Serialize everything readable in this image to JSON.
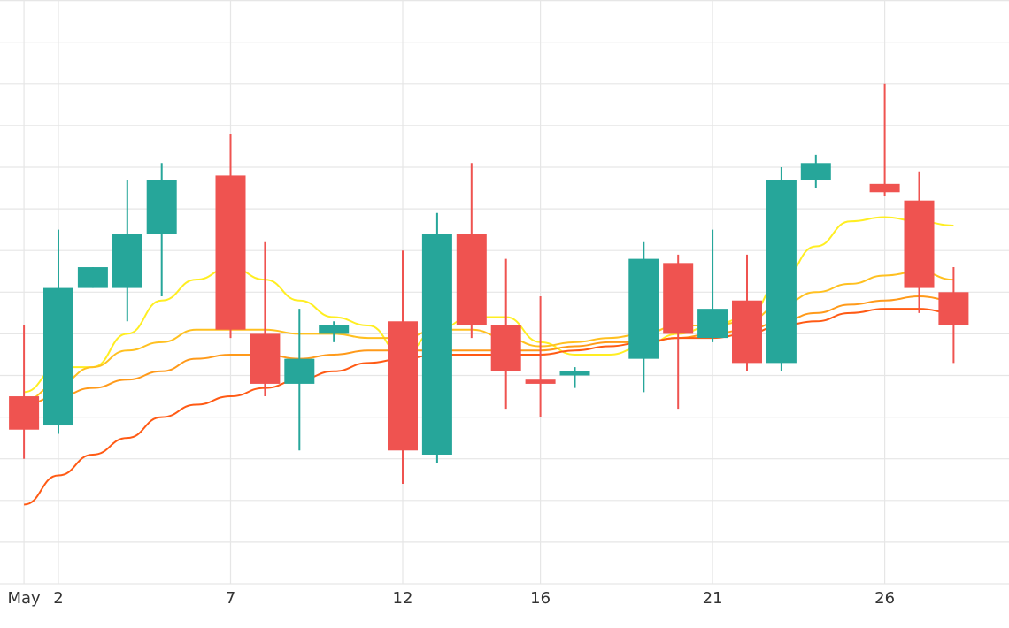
{
  "chart_data": {
    "type": "candlestick",
    "title": "",
    "xlabel": "",
    "ylabel": "",
    "x_tick_labels": [
      {
        "label": "May",
        "date": "2024-05-01"
      },
      {
        "label": "2",
        "date": "2024-05-02"
      },
      {
        "label": "7",
        "date": "2024-05-07"
      },
      {
        "label": "12",
        "date": "2024-05-12"
      },
      {
        "label": "16",
        "date": "2024-05-16"
      },
      {
        "label": "21",
        "date": "2024-05-21"
      },
      {
        "label": "26",
        "date": "2024-05-26"
      }
    ],
    "xlim": [
      "2024-04-30T15:00",
      "2024-05-29T16:00"
    ],
    "ylim": [
      0,
      14
    ],
    "grid": true,
    "y_axis_labels_visible": false,
    "colors": {
      "increasing": "#26a69a",
      "decreasing": "#ef5350",
      "grid": "#e6e6e6",
      "ma_lines": [
        "#ffee22",
        "#ffc020",
        "#ff9a1a",
        "#ff5a14"
      ]
    },
    "candles": [
      {
        "date": "2024-05-01",
        "open": 4.5,
        "high": 6.2,
        "low": 3.0,
        "close": 3.7
      },
      {
        "date": "2024-05-02",
        "open": 3.8,
        "high": 8.5,
        "low": 3.6,
        "close": 7.1
      },
      {
        "date": "2024-05-03",
        "open": 7.1,
        "high": 7.6,
        "low": 7.1,
        "close": 7.6
      },
      {
        "date": "2024-05-04",
        "open": 7.1,
        "high": 9.7,
        "low": 6.3,
        "close": 8.4
      },
      {
        "date": "2024-05-05",
        "open": 8.4,
        "high": 10.1,
        "low": 6.9,
        "close": 9.7
      },
      {
        "date": "2024-05-07",
        "open": 9.8,
        "high": 10.8,
        "low": 5.9,
        "close": 6.1
      },
      {
        "date": "2024-05-08",
        "open": 6.0,
        "high": 8.2,
        "low": 4.5,
        "close": 4.8
      },
      {
        "date": "2024-05-09",
        "open": 4.8,
        "high": 6.6,
        "low": 3.2,
        "close": 5.4
      },
      {
        "date": "2024-05-10",
        "open": 6.0,
        "high": 6.3,
        "low": 5.8,
        "close": 6.2
      },
      {
        "date": "2024-05-12",
        "open": 6.3,
        "high": 8.0,
        "low": 2.4,
        "close": 3.2
      },
      {
        "date": "2024-05-13",
        "open": 3.1,
        "high": 8.9,
        "low": 2.9,
        "close": 8.4
      },
      {
        "date": "2024-05-14",
        "open": 8.4,
        "high": 10.1,
        "low": 5.9,
        "close": 6.2
      },
      {
        "date": "2024-05-15",
        "open": 6.2,
        "high": 7.8,
        "low": 4.2,
        "close": 5.1
      },
      {
        "date": "2024-05-16",
        "open": 4.9,
        "high": 6.9,
        "low": 4.0,
        "close": 4.8
      },
      {
        "date": "2024-05-17",
        "open": 5.0,
        "high": 5.2,
        "low": 4.7,
        "close": 5.1
      },
      {
        "date": "2024-05-19",
        "open": 5.4,
        "high": 8.2,
        "low": 4.6,
        "close": 7.8
      },
      {
        "date": "2024-05-20",
        "open": 7.7,
        "high": 7.9,
        "low": 4.2,
        "close": 6.0
      },
      {
        "date": "2024-05-21",
        "open": 5.9,
        "high": 8.5,
        "low": 5.8,
        "close": 6.6
      },
      {
        "date": "2024-05-22",
        "open": 6.8,
        "high": 7.9,
        "low": 5.1,
        "close": 5.3
      },
      {
        "date": "2024-05-23",
        "open": 5.3,
        "high": 10.0,
        "low": 5.1,
        "close": 9.7
      },
      {
        "date": "2024-05-24",
        "open": 9.7,
        "high": 10.3,
        "low": 9.5,
        "close": 10.1
      },
      {
        "date": "2024-05-26",
        "open": 9.6,
        "high": 12.0,
        "low": 9.3,
        "close": 9.4
      },
      {
        "date": "2024-05-27",
        "open": 9.2,
        "high": 9.9,
        "low": 6.5,
        "close": 7.1
      },
      {
        "date": "2024-05-28",
        "open": 7.0,
        "high": 7.6,
        "low": 5.3,
        "close": 6.2
      }
    ],
    "ma_series": [
      {
        "color": "#ffee22",
        "points": [
          [
            "2024-05-01",
            4.6
          ],
          [
            "2024-05-02",
            5.2
          ],
          [
            "2024-05-03",
            5.2
          ],
          [
            "2024-05-04",
            6.0
          ],
          [
            "2024-05-05",
            6.8
          ],
          [
            "2024-05-06",
            7.3
          ],
          [
            "2024-05-07",
            7.6
          ],
          [
            "2024-05-08",
            7.3
          ],
          [
            "2024-05-09",
            6.8
          ],
          [
            "2024-05-10",
            6.4
          ],
          [
            "2024-05-11",
            6.2
          ],
          [
            "2024-05-12",
            5.5
          ],
          [
            "2024-05-13",
            6.1
          ],
          [
            "2024-05-14",
            6.4
          ],
          [
            "2024-05-15",
            6.4
          ],
          [
            "2024-05-16",
            5.8
          ],
          [
            "2024-05-17",
            5.5
          ],
          [
            "2024-05-18",
            5.5
          ],
          [
            "2024-05-19",
            5.7
          ],
          [
            "2024-05-20",
            6.0
          ],
          [
            "2024-05-21",
            6.2
          ],
          [
            "2024-05-22",
            6.4
          ],
          [
            "2024-05-23",
            7.3
          ],
          [
            "2024-05-24",
            8.1
          ],
          [
            "2024-05-25",
            8.7
          ],
          [
            "2024-05-26",
            8.8
          ],
          [
            "2024-05-27",
            8.7
          ],
          [
            "2024-05-28",
            8.6
          ]
        ]
      },
      {
        "color": "#ffc020",
        "points": [
          [
            "2024-05-01",
            4.4
          ],
          [
            "2024-05-02",
            4.8
          ],
          [
            "2024-05-03",
            5.2
          ],
          [
            "2024-05-04",
            5.6
          ],
          [
            "2024-05-05",
            5.8
          ],
          [
            "2024-05-06",
            6.1
          ],
          [
            "2024-05-07",
            6.1
          ],
          [
            "2024-05-08",
            6.1
          ],
          [
            "2024-05-09",
            6.0
          ],
          [
            "2024-05-10",
            6.0
          ],
          [
            "2024-05-11",
            5.9
          ],
          [
            "2024-05-12",
            5.9
          ],
          [
            "2024-05-13",
            6.1
          ],
          [
            "2024-05-14",
            6.1
          ],
          [
            "2024-05-15",
            5.9
          ],
          [
            "2024-05-16",
            5.7
          ],
          [
            "2024-05-17",
            5.8
          ],
          [
            "2024-05-18",
            5.9
          ],
          [
            "2024-05-19",
            6.0
          ],
          [
            "2024-05-20",
            6.2
          ],
          [
            "2024-05-21",
            6.2
          ],
          [
            "2024-05-22",
            6.3
          ],
          [
            "2024-05-23",
            6.7
          ],
          [
            "2024-05-24",
            7.0
          ],
          [
            "2024-05-25",
            7.2
          ],
          [
            "2024-05-26",
            7.4
          ],
          [
            "2024-05-27",
            7.5
          ],
          [
            "2024-05-28",
            7.3
          ]
        ]
      },
      {
        "color": "#ff9a1a",
        "points": [
          [
            "2024-05-01",
            4.3
          ],
          [
            "2024-05-02",
            4.5
          ],
          [
            "2024-05-03",
            4.7
          ],
          [
            "2024-05-04",
            4.9
          ],
          [
            "2024-05-05",
            5.1
          ],
          [
            "2024-05-06",
            5.4
          ],
          [
            "2024-05-07",
            5.5
          ],
          [
            "2024-05-08",
            5.5
          ],
          [
            "2024-05-09",
            5.4
          ],
          [
            "2024-05-10",
            5.5
          ],
          [
            "2024-05-11",
            5.6
          ],
          [
            "2024-05-12",
            5.6
          ],
          [
            "2024-05-13",
            5.6
          ],
          [
            "2024-05-14",
            5.6
          ],
          [
            "2024-05-15",
            5.6
          ],
          [
            "2024-05-16",
            5.6
          ],
          [
            "2024-05-17",
            5.7
          ],
          [
            "2024-05-18",
            5.8
          ],
          [
            "2024-05-19",
            5.8
          ],
          [
            "2024-05-20",
            5.9
          ],
          [
            "2024-05-21",
            6.0
          ],
          [
            "2024-05-22",
            6.1
          ],
          [
            "2024-05-23",
            6.3
          ],
          [
            "2024-05-24",
            6.5
          ],
          [
            "2024-05-25",
            6.7
          ],
          [
            "2024-05-26",
            6.8
          ],
          [
            "2024-05-27",
            6.9
          ],
          [
            "2024-05-28",
            6.8
          ]
        ]
      },
      {
        "color": "#ff5a14",
        "points": [
          [
            "2024-05-01",
            1.9
          ],
          [
            "2024-05-02",
            2.6
          ],
          [
            "2024-05-03",
            3.1
          ],
          [
            "2024-05-04",
            3.5
          ],
          [
            "2024-05-05",
            4.0
          ],
          [
            "2024-05-06",
            4.3
          ],
          [
            "2024-05-07",
            4.5
          ],
          [
            "2024-05-08",
            4.7
          ],
          [
            "2024-05-09",
            4.9
          ],
          [
            "2024-05-10",
            5.1
          ],
          [
            "2024-05-11",
            5.3
          ],
          [
            "2024-05-12",
            5.4
          ],
          [
            "2024-05-13",
            5.5
          ],
          [
            "2024-05-14",
            5.5
          ],
          [
            "2024-05-15",
            5.5
          ],
          [
            "2024-05-16",
            5.5
          ],
          [
            "2024-05-17",
            5.6
          ],
          [
            "2024-05-18",
            5.7
          ],
          [
            "2024-05-19",
            5.8
          ],
          [
            "2024-05-20",
            5.9
          ],
          [
            "2024-05-21",
            5.9
          ],
          [
            "2024-05-22",
            6.0
          ],
          [
            "2024-05-23",
            6.2
          ],
          [
            "2024-05-24",
            6.3
          ],
          [
            "2024-05-25",
            6.5
          ],
          [
            "2024-05-26",
            6.6
          ],
          [
            "2024-05-27",
            6.6
          ],
          [
            "2024-05-28",
            6.5
          ]
        ]
      }
    ]
  }
}
